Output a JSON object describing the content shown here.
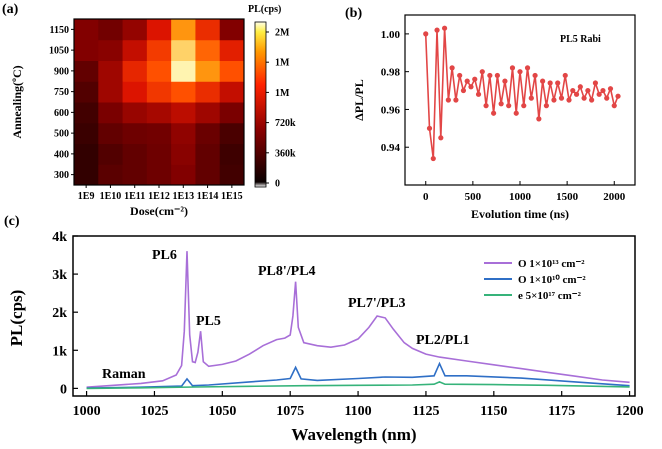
{
  "panel_labels": {
    "a": "(a)",
    "b": "(b)",
    "c": "(c)"
  },
  "chart_data": [
    {
      "type": "heatmap",
      "panel": "(a)",
      "xlabel": "Dose(cm⁻²)",
      "ylabel": "Annealing(ºC)",
      "x_categories": [
        "1E9",
        "1E10",
        "1E11",
        "1E12",
        "1E13",
        "1E14",
        "1E15"
      ],
      "y_categories": [
        "300",
        "400",
        "500",
        "600",
        "750",
        "900",
        "1050",
        "1150"
      ],
      "values": [
        [
          0.1,
          0.2,
          0.22,
          0.25,
          0.3,
          0.22,
          0.14
        ],
        [
          0.1,
          0.18,
          0.22,
          0.25,
          0.32,
          0.22,
          0.13
        ],
        [
          0.12,
          0.22,
          0.25,
          0.26,
          0.34,
          0.24,
          0.16
        ],
        [
          0.14,
          0.28,
          0.36,
          0.4,
          0.46,
          0.38,
          0.28
        ],
        [
          0.18,
          0.38,
          0.55,
          0.65,
          0.72,
          0.62,
          0.48
        ],
        [
          0.22,
          0.38,
          0.6,
          0.72,
          0.98,
          0.82,
          0.72
        ],
        [
          0.3,
          0.32,
          0.48,
          0.66,
          0.92,
          0.75,
          0.58
        ],
        [
          0.3,
          0.26,
          0.35,
          0.55,
          0.82,
          0.62,
          0.3
        ]
      ],
      "colorbar": {
        "title": "PL(cps)",
        "tick_labels": [
          "2M",
          "1M",
          "1M",
          "720k",
          "360k",
          "0"
        ]
      }
    },
    {
      "type": "line",
      "panel": "(b)",
      "annotation": "PL5 Rabi",
      "xlabel": "Evolution time (ns)",
      "ylabel": "ΔPL/PL",
      "xlim": [
        -220,
        2220
      ],
      "ylim": [
        0.92,
        1.01
      ],
      "x_ticks": [
        "0",
        "500",
        "1000",
        "1500",
        "2000"
      ],
      "y_ticks": [
        "0.94",
        "0.96",
        "0.98",
        "1.00"
      ],
      "x": [
        0,
        40,
        80,
        120,
        160,
        200,
        240,
        280,
        320,
        360,
        400,
        440,
        480,
        520,
        560,
        600,
        640,
        680,
        720,
        760,
        800,
        840,
        880,
        920,
        960,
        1000,
        1040,
        1080,
        1120,
        1160,
        1200,
        1240,
        1280,
        1320,
        1360,
        1400,
        1440,
        1480,
        1520,
        1560,
        1600,
        1640,
        1680,
        1720,
        1760,
        1800,
        1840,
        1880,
        1920,
        1960,
        2000,
        2040
      ],
      "y": [
        1.0,
        0.95,
        0.934,
        1.002,
        0.945,
        1.003,
        0.965,
        0.982,
        0.965,
        0.978,
        0.97,
        0.975,
        0.972,
        0.976,
        0.968,
        0.98,
        0.962,
        0.978,
        0.958,
        0.978,
        0.963,
        0.975,
        0.962,
        0.982,
        0.958,
        0.98,
        0.962,
        0.982,
        0.966,
        0.978,
        0.955,
        0.975,
        0.962,
        0.974,
        0.965,
        0.974,
        0.966,
        0.978,
        0.965,
        0.97,
        0.968,
        0.972,
        0.966,
        0.97,
        0.965,
        0.974,
        0.968,
        0.97,
        0.966,
        0.971,
        0.962,
        0.967
      ]
    },
    {
      "type": "line",
      "panel": "(c)",
      "xlabel": "Wavelength (nm)",
      "ylabel": "PL(cps)",
      "xlim": [
        995,
        1202
      ],
      "ylim": [
        -200,
        4000
      ],
      "x_ticks": [
        "1000",
        "1025",
        "1050",
        "1075",
        "1100",
        "1125",
        "1150",
        "1175",
        "1200"
      ],
      "y_ticks": [
        "0",
        "1k",
        "2k",
        "3k",
        "4k"
      ],
      "annotations": [
        "PL6",
        "PL5",
        "PL8'/PL4",
        "PL7'/PL3",
        "PL2/PL1",
        "Raman"
      ],
      "legend_position": "top-right",
      "series": [
        {
          "name": "O 1×10¹³ cm⁻²",
          "color": "#a86fd8",
          "x": [
            1000,
            1010,
            1020,
            1028,
            1033,
            1035,
            1036,
            1037,
            1038,
            1039,
            1040,
            1041,
            1042,
            1043,
            1045,
            1050,
            1055,
            1060,
            1065,
            1070,
            1073,
            1075,
            1076,
            1077,
            1078,
            1080,
            1085,
            1090,
            1095,
            1100,
            1104,
            1107,
            1110,
            1113,
            1117,
            1120,
            1125,
            1130,
            1140,
            1150,
            1160,
            1170,
            1180,
            1190,
            1200
          ],
          "y": [
            30,
            80,
            130,
            200,
            350,
            600,
            1500,
            3600,
            1400,
            700,
            680,
            950,
            1500,
            700,
            580,
            630,
            720,
            900,
            1120,
            1280,
            1320,
            1400,
            1900,
            2800,
            1600,
            1200,
            1120,
            1080,
            1140,
            1300,
            1600,
            1900,
            1850,
            1550,
            1200,
            1050,
            900,
            820,
            720,
            620,
            520,
            420,
            320,
            220,
            160
          ]
        },
        {
          "name": "O 1×10¹⁰ cm⁻²",
          "color": "#2f6fc6",
          "x": [
            1000,
            1020,
            1035,
            1037,
            1039,
            1045,
            1060,
            1070,
            1075,
            1077,
            1079,
            1085,
            1100,
            1110,
            1120,
            1128,
            1130,
            1132,
            1140,
            1160,
            1180,
            1200
          ],
          "y": [
            10,
            30,
            60,
            250,
            70,
            90,
            170,
            220,
            260,
            550,
            250,
            210,
            260,
            300,
            290,
            330,
            650,
            330,
            330,
            270,
            170,
            70
          ]
        },
        {
          "name": "e  5×10¹⁷ cm⁻²",
          "color": "#36b37a",
          "x": [
            1000,
            1020,
            1040,
            1060,
            1080,
            1100,
            1120,
            1128,
            1130,
            1132,
            1150,
            1170,
            1200
          ],
          "y": [
            0,
            15,
            35,
            55,
            70,
            80,
            90,
            110,
            170,
            110,
            100,
            80,
            40
          ]
        }
      ]
    }
  ]
}
